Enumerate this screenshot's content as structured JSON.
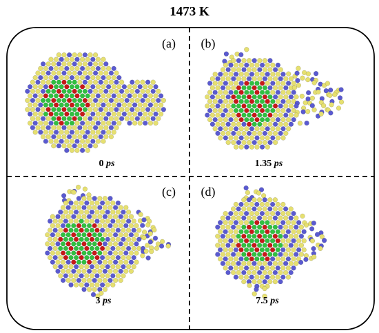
{
  "header": {
    "title": "1473 K"
  },
  "panels": [
    {
      "label": "(a)",
      "time": "0",
      "unit": "ps"
    },
    {
      "label": "(b)",
      "time": "1.35",
      "unit": "ps"
    },
    {
      "label": "(c)",
      "time": "3",
      "unit": "ps"
    },
    {
      "label": "(d)",
      "time": "7.5",
      "unit": "ps"
    }
  ]
}
